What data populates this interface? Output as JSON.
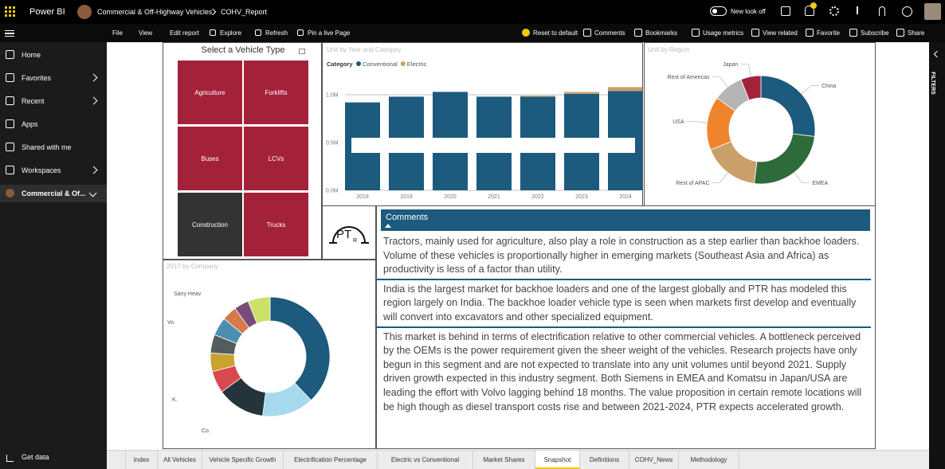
{
  "top_bar": {
    "app": "Power BI",
    "breadcrumb": [
      "Commercial & Off-Highway Vehicles",
      "COHV_Report"
    ],
    "new_look": "New look off"
  },
  "toolbar": {
    "left": [
      "File",
      "View",
      "Edit report",
      "Explore",
      "Refresh",
      "Pin a live Page"
    ],
    "right": [
      "Reset to default",
      "Comments",
      "Bookmarks",
      "Usage metrics",
      "View related",
      "Favorite",
      "Subscribe",
      "Share"
    ]
  },
  "nav": {
    "items": [
      "Home",
      "Favorites",
      "Recent",
      "Apps",
      "Shared with me",
      "Workspaces",
      "Commercial & Of..."
    ],
    "footer": "Get data"
  },
  "filters": "FILTERS",
  "tabs": [
    "Index",
    "All Vehicles",
    "Vehicle Specific Growth",
    "Electrification Percentage",
    "Electric vs Conventional",
    "Market Shares",
    "Snapshot",
    "Definitions",
    "COHV_News",
    "Methodology"
  ],
  "slicer": {
    "title": "Select a Vehicle Type",
    "options": [
      "Agriculture",
      "Forklifts",
      "Buses",
      "LCVs",
      "Construction",
      "Trucks"
    ]
  },
  "bar_chart": {
    "type": "bar",
    "title": "Unit by Year and Category",
    "legend_title": "Category",
    "categories": [
      "2018",
      "2019",
      "2020",
      "2021",
      "2022",
      "2023",
      "2024"
    ],
    "series": [
      {
        "name": "Conventional",
        "color": "#1c5a7e",
        "values": [
          920000,
          980000,
          1030000,
          980000,
          980000,
          1010000,
          1040000
        ]
      },
      {
        "name": "Electric",
        "color": "#c9a06a",
        "values": [
          0,
          0,
          0,
          0,
          10000,
          20000,
          40000
        ]
      }
    ],
    "ylim": [
      0,
      1150000
    ],
    "yticks": [
      {
        "value": 0,
        "label": "0.0M"
      },
      {
        "value": 500000,
        "label": "0.5M"
      },
      {
        "value": 1000000,
        "label": "1.0M"
      }
    ],
    "grid": true
  },
  "region_chart": {
    "type": "donut",
    "title": "Unit by Region",
    "categories": [
      "China",
      "EMEA",
      "Rest of APAC",
      "USA",
      "Rest of Americas",
      "Japan"
    ],
    "values": [
      27,
      25,
      17,
      16,
      9,
      6
    ],
    "colors": [
      "#1c5a7e",
      "#2e6b3a",
      "#c9a06a",
      "#f0842a",
      "#b5b5b5",
      "#a4213a"
    ]
  },
  "company_chart": {
    "type": "donut",
    "title": "2017 by Company",
    "values": [
      38,
      14,
      13,
      6,
      5,
      5,
      5,
      4,
      4,
      6
    ],
    "colors": [
      "#1c5a7e",
      "#a6d8ee",
      "#24343a",
      "#d9484f",
      "#c9a230",
      "#555b5e",
      "#4b8fb0",
      "#d67a4a",
      "#7a4b7a",
      "#cde06a"
    ],
    "labels": [
      "Sany Heav",
      "Vo",
      "K.",
      "Co."
    ]
  },
  "logo": {
    "text": "PT",
    "subscript": "R"
  },
  "comments": {
    "title": "Comments",
    "paragraphs": [
      "Tractors, mainly used for agriculture, also play a role in construction as a step earlier than backhoe loaders. Volume of these vehicles is proportionally higher in emerging markets (Southeast Asia and Africa) as productivity is less of a factor than utility.",
      "India is the largest market for backhoe loaders and one of the largest globally and PTR has modeled this region largely on India. The backhoe loader vehicle type is seen when markets first develop and eventually will convert into excavators and other specialized equipment.",
      "This market is behind in terms of electrification relative to other commercial vehicles. A bottleneck perceived by the OEMs is the power requirement given the sheer weight of the vehicles. Research projects have only begun in this segment and are not expected to translate into any unit volumes until beyond 2021. Supply driven growth expected in this industry segment. Both Siemens in EMEA and Komatsu in Japan/USA are leading the effort with Volvo lagging behind 18 months. The value proposition in certain remote locations will be high though as diesel transport costs rise and between 2021-2024, PTR expects accelerated growth."
    ]
  }
}
